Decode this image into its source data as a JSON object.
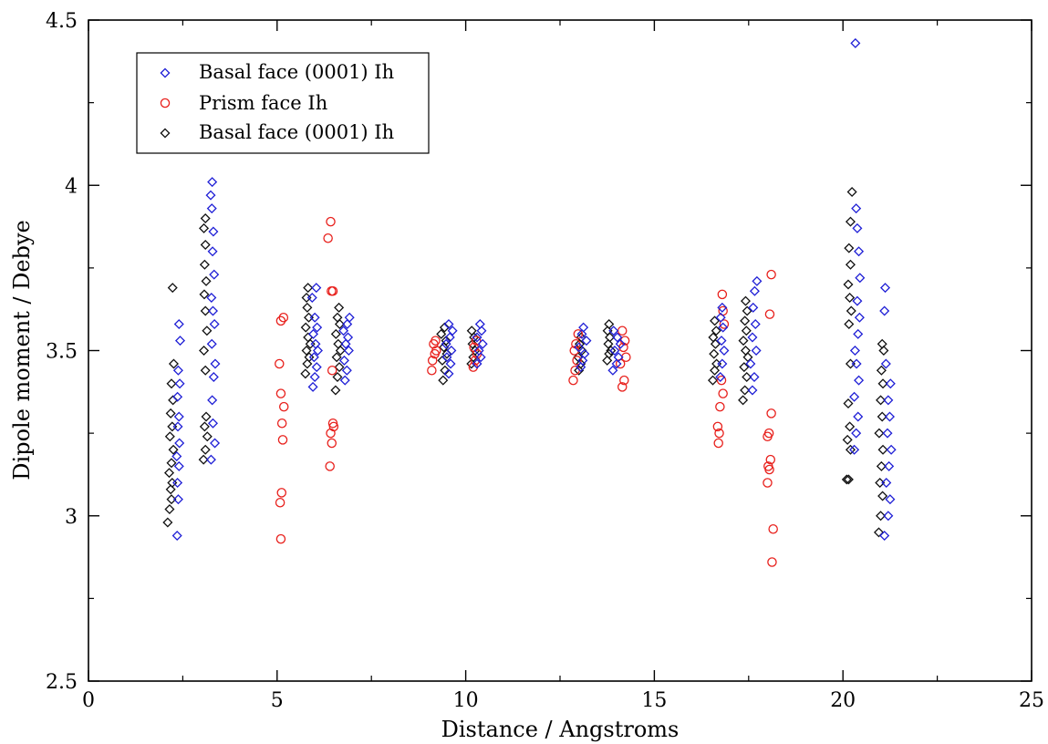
{
  "chart_data": {
    "type": "scatter",
    "xlabel": "Distance / Angstroms",
    "ylabel": "Dipole moment / Debye",
    "xlim": [
      0,
      25
    ],
    "ylim": [
      2.5,
      4.5
    ],
    "xticks": [
      0,
      5,
      10,
      15,
      20,
      25
    ],
    "yticks": [
      2.5,
      3,
      3.5,
      4,
      4.5
    ],
    "legend_position": "top-left",
    "grid": false,
    "series": [
      {
        "name": "Basal face (0001) Ih",
        "marker": "diamond",
        "color": "#1f1fd6",
        "points": [
          [
            2.35,
            2.94
          ],
          [
            2.38,
            3.05
          ],
          [
            2.36,
            3.1
          ],
          [
            2.4,
            3.15
          ],
          [
            2.34,
            3.18
          ],
          [
            2.41,
            3.22
          ],
          [
            2.37,
            3.27
          ],
          [
            2.4,
            3.3
          ],
          [
            2.36,
            3.36
          ],
          [
            2.42,
            3.4
          ],
          [
            2.38,
            3.44
          ],
          [
            2.43,
            3.53
          ],
          [
            2.4,
            3.58
          ],
          [
            3.25,
            3.17
          ],
          [
            3.35,
            3.22
          ],
          [
            3.3,
            3.28
          ],
          [
            3.28,
            3.35
          ],
          [
            3.32,
            3.42
          ],
          [
            3.36,
            3.46
          ],
          [
            3.27,
            3.52
          ],
          [
            3.34,
            3.58
          ],
          [
            3.3,
            3.62
          ],
          [
            3.26,
            3.66
          ],
          [
            3.33,
            3.73
          ],
          [
            3.29,
            3.8
          ],
          [
            3.31,
            3.86
          ],
          [
            3.27,
            3.93
          ],
          [
            3.24,
            3.97
          ],
          [
            3.28,
            4.01
          ],
          [
            5.95,
            3.39
          ],
          [
            6.0,
            3.42
          ],
          [
            6.05,
            3.45
          ],
          [
            5.98,
            3.48
          ],
          [
            6.08,
            3.5
          ],
          [
            6.02,
            3.52
          ],
          [
            5.96,
            3.55
          ],
          [
            6.06,
            3.57
          ],
          [
            6.0,
            3.6
          ],
          [
            5.93,
            3.66
          ],
          [
            6.04,
            3.69
          ],
          [
            6.8,
            3.41
          ],
          [
            6.85,
            3.44
          ],
          [
            6.78,
            3.47
          ],
          [
            6.9,
            3.5
          ],
          [
            6.82,
            3.52
          ],
          [
            6.88,
            3.54
          ],
          [
            6.76,
            3.56
          ],
          [
            6.86,
            3.58
          ],
          [
            6.92,
            3.6
          ],
          [
            9.55,
            3.43
          ],
          [
            9.6,
            3.46
          ],
          [
            9.5,
            3.48
          ],
          [
            9.62,
            3.5
          ],
          [
            9.48,
            3.52
          ],
          [
            9.58,
            3.54
          ],
          [
            9.65,
            3.56
          ],
          [
            9.55,
            3.58
          ],
          [
            10.3,
            3.46
          ],
          [
            10.4,
            3.48
          ],
          [
            10.35,
            3.5
          ],
          [
            10.45,
            3.52
          ],
          [
            10.3,
            3.54
          ],
          [
            10.42,
            3.56
          ],
          [
            10.38,
            3.58
          ],
          [
            13.05,
            3.45
          ],
          [
            13.1,
            3.47
          ],
          [
            13.15,
            3.49
          ],
          [
            13.0,
            3.51
          ],
          [
            13.2,
            3.53
          ],
          [
            13.08,
            3.55
          ],
          [
            13.12,
            3.57
          ],
          [
            13.9,
            3.44
          ],
          [
            14.0,
            3.46
          ],
          [
            14.05,
            3.48
          ],
          [
            13.95,
            3.5
          ],
          [
            14.1,
            3.52
          ],
          [
            14.02,
            3.54
          ],
          [
            13.92,
            3.56
          ],
          [
            16.75,
            3.42
          ],
          [
            16.8,
            3.46
          ],
          [
            16.85,
            3.5
          ],
          [
            16.78,
            3.53
          ],
          [
            16.82,
            3.57
          ],
          [
            16.76,
            3.6
          ],
          [
            16.8,
            3.63
          ],
          [
            17.6,
            3.38
          ],
          [
            17.65,
            3.42
          ],
          [
            17.55,
            3.46
          ],
          [
            17.7,
            3.5
          ],
          [
            17.6,
            3.54
          ],
          [
            17.68,
            3.58
          ],
          [
            17.62,
            3.63
          ],
          [
            17.66,
            3.68
          ],
          [
            17.72,
            3.71
          ],
          [
            20.3,
            3.2
          ],
          [
            20.35,
            3.25
          ],
          [
            20.4,
            3.3
          ],
          [
            20.3,
            3.36
          ],
          [
            20.42,
            3.41
          ],
          [
            20.36,
            3.46
          ],
          [
            20.32,
            3.5
          ],
          [
            20.4,
            3.55
          ],
          [
            20.44,
            3.6
          ],
          [
            20.38,
            3.65
          ],
          [
            20.45,
            3.72
          ],
          [
            20.42,
            3.8
          ],
          [
            20.38,
            3.87
          ],
          [
            20.35,
            3.93
          ],
          [
            20.33,
            4.43
          ],
          [
            21.1,
            2.94
          ],
          [
            21.2,
            3.0
          ],
          [
            21.25,
            3.05
          ],
          [
            21.15,
            3.1
          ],
          [
            21.22,
            3.15
          ],
          [
            21.28,
            3.2
          ],
          [
            21.18,
            3.25
          ],
          [
            21.24,
            3.3
          ],
          [
            21.2,
            3.35
          ],
          [
            21.26,
            3.4
          ],
          [
            21.14,
            3.46
          ],
          [
            21.1,
            3.62
          ],
          [
            21.12,
            3.69
          ]
        ]
      },
      {
        "name": "Prism face Ih",
        "marker": "circle",
        "color": "#e8201c",
        "points": [
          [
            5.1,
            2.93
          ],
          [
            5.08,
            3.04
          ],
          [
            5.12,
            3.07
          ],
          [
            5.15,
            3.23
          ],
          [
            5.13,
            3.28
          ],
          [
            5.18,
            3.33
          ],
          [
            5.1,
            3.37
          ],
          [
            5.06,
            3.46
          ],
          [
            5.1,
            3.59
          ],
          [
            5.17,
            3.6
          ],
          [
            6.4,
            3.15
          ],
          [
            6.45,
            3.22
          ],
          [
            6.42,
            3.25
          ],
          [
            6.5,
            3.27
          ],
          [
            6.48,
            3.28
          ],
          [
            6.46,
            3.44
          ],
          [
            6.44,
            3.68
          ],
          [
            6.48,
            3.68
          ],
          [
            6.35,
            3.84
          ],
          [
            6.42,
            3.89
          ],
          [
            9.1,
            3.44
          ],
          [
            9.12,
            3.47
          ],
          [
            9.18,
            3.49
          ],
          [
            9.22,
            3.5
          ],
          [
            9.15,
            3.52
          ],
          [
            9.2,
            3.53
          ],
          [
            10.2,
            3.45
          ],
          [
            10.25,
            3.47
          ],
          [
            10.3,
            3.49
          ],
          [
            10.22,
            3.51
          ],
          [
            10.28,
            3.53
          ],
          [
            12.85,
            3.41
          ],
          [
            12.9,
            3.44
          ],
          [
            12.95,
            3.47
          ],
          [
            12.88,
            3.5
          ],
          [
            12.92,
            3.52
          ],
          [
            12.98,
            3.55
          ],
          [
            14.15,
            3.39
          ],
          [
            14.2,
            3.41
          ],
          [
            14.1,
            3.46
          ],
          [
            14.25,
            3.48
          ],
          [
            14.18,
            3.51
          ],
          [
            14.22,
            3.53
          ],
          [
            14.15,
            3.56
          ],
          [
            16.7,
            3.22
          ],
          [
            16.72,
            3.25
          ],
          [
            16.68,
            3.27
          ],
          [
            16.74,
            3.33
          ],
          [
            16.82,
            3.37
          ],
          [
            16.78,
            3.41
          ],
          [
            16.85,
            3.58
          ],
          [
            16.82,
            3.62
          ],
          [
            16.8,
            3.67
          ],
          [
            18.0,
            3.1
          ],
          [
            18.05,
            3.14
          ],
          [
            18.02,
            3.15
          ],
          [
            18.08,
            3.17
          ],
          [
            18.0,
            3.24
          ],
          [
            18.04,
            3.25
          ],
          [
            18.1,
            3.31
          ],
          [
            18.06,
            3.61
          ],
          [
            18.1,
            3.73
          ],
          [
            18.15,
            2.96
          ],
          [
            18.12,
            2.86
          ]
        ]
      },
      {
        "name": "Basal face (0001) Ih",
        "marker": "diamond",
        "color": "#111111",
        "points": [
          [
            2.1,
            2.98
          ],
          [
            2.15,
            3.02
          ],
          [
            2.2,
            3.05
          ],
          [
            2.18,
            3.08
          ],
          [
            2.22,
            3.1
          ],
          [
            2.14,
            3.13
          ],
          [
            2.2,
            3.16
          ],
          [
            2.25,
            3.2
          ],
          [
            2.16,
            3.24
          ],
          [
            2.22,
            3.27
          ],
          [
            2.18,
            3.31
          ],
          [
            2.24,
            3.35
          ],
          [
            2.2,
            3.4
          ],
          [
            2.26,
            3.46
          ],
          [
            2.23,
            3.69
          ],
          [
            3.05,
            3.17
          ],
          [
            3.1,
            3.2
          ],
          [
            3.15,
            3.24
          ],
          [
            3.08,
            3.27
          ],
          [
            3.12,
            3.3
          ],
          [
            3.1,
            3.44
          ],
          [
            3.06,
            3.5
          ],
          [
            3.14,
            3.56
          ],
          [
            3.1,
            3.62
          ],
          [
            3.07,
            3.67
          ],
          [
            3.12,
            3.71
          ],
          [
            3.08,
            3.76
          ],
          [
            3.1,
            3.82
          ],
          [
            3.06,
            3.87
          ],
          [
            3.1,
            3.9
          ],
          [
            5.75,
            3.43
          ],
          [
            5.8,
            3.46
          ],
          [
            5.85,
            3.48
          ],
          [
            5.78,
            3.5
          ],
          [
            5.88,
            3.52
          ],
          [
            5.82,
            3.54
          ],
          [
            5.76,
            3.57
          ],
          [
            5.84,
            3.6
          ],
          [
            5.8,
            3.63
          ],
          [
            5.78,
            3.66
          ],
          [
            5.82,
            3.69
          ],
          [
            6.55,
            3.38
          ],
          [
            6.6,
            3.42
          ],
          [
            6.65,
            3.45
          ],
          [
            6.58,
            3.48
          ],
          [
            6.68,
            3.5
          ],
          [
            6.62,
            3.52
          ],
          [
            6.56,
            3.55
          ],
          [
            6.66,
            3.58
          ],
          [
            6.6,
            3.6
          ],
          [
            6.64,
            3.63
          ],
          [
            9.4,
            3.41
          ],
          [
            9.45,
            3.44
          ],
          [
            9.38,
            3.47
          ],
          [
            9.5,
            3.49
          ],
          [
            9.42,
            3.51
          ],
          [
            9.48,
            3.53
          ],
          [
            9.35,
            3.55
          ],
          [
            9.44,
            3.57
          ],
          [
            10.15,
            3.46
          ],
          [
            10.2,
            3.48
          ],
          [
            10.25,
            3.5
          ],
          [
            10.18,
            3.52
          ],
          [
            10.22,
            3.54
          ],
          [
            10.16,
            3.56
          ],
          [
            13.0,
            3.44
          ],
          [
            13.05,
            3.46
          ],
          [
            12.98,
            3.48
          ],
          [
            13.08,
            3.5
          ],
          [
            13.02,
            3.52
          ],
          [
            13.06,
            3.54
          ],
          [
            13.75,
            3.47
          ],
          [
            13.8,
            3.49
          ],
          [
            13.85,
            3.5
          ],
          [
            13.78,
            3.52
          ],
          [
            13.82,
            3.54
          ],
          [
            13.76,
            3.56
          ],
          [
            13.8,
            3.58
          ],
          [
            16.55,
            3.41
          ],
          [
            16.6,
            3.44
          ],
          [
            16.65,
            3.46
          ],
          [
            16.58,
            3.49
          ],
          [
            16.62,
            3.52
          ],
          [
            16.56,
            3.54
          ],
          [
            16.64,
            3.56
          ],
          [
            16.6,
            3.59
          ],
          [
            17.35,
            3.35
          ],
          [
            17.4,
            3.38
          ],
          [
            17.45,
            3.42
          ],
          [
            17.38,
            3.45
          ],
          [
            17.48,
            3.48
          ],
          [
            17.42,
            3.5
          ],
          [
            17.36,
            3.53
          ],
          [
            17.44,
            3.56
          ],
          [
            17.4,
            3.59
          ],
          [
            17.46,
            3.62
          ],
          [
            17.42,
            3.65
          ],
          [
            20.1,
            3.11
          ],
          [
            20.15,
            3.11
          ],
          [
            20.2,
            3.2
          ],
          [
            20.12,
            3.23
          ],
          [
            20.18,
            3.27
          ],
          [
            20.14,
            3.34
          ],
          [
            20.2,
            3.46
          ],
          [
            20.16,
            3.58
          ],
          [
            20.22,
            3.62
          ],
          [
            20.18,
            3.66
          ],
          [
            20.14,
            3.7
          ],
          [
            20.2,
            3.76
          ],
          [
            20.16,
            3.81
          ],
          [
            20.2,
            3.89
          ],
          [
            20.24,
            3.98
          ],
          [
            20.95,
            2.95
          ],
          [
            21.0,
            3.0
          ],
          [
            21.05,
            3.06
          ],
          [
            20.98,
            3.1
          ],
          [
            21.02,
            3.15
          ],
          [
            21.06,
            3.2
          ],
          [
            20.96,
            3.25
          ],
          [
            21.04,
            3.3
          ],
          [
            21.0,
            3.35
          ],
          [
            21.06,
            3.4
          ],
          [
            21.02,
            3.44
          ],
          [
            21.08,
            3.5
          ],
          [
            21.04,
            3.52
          ]
        ]
      }
    ]
  }
}
